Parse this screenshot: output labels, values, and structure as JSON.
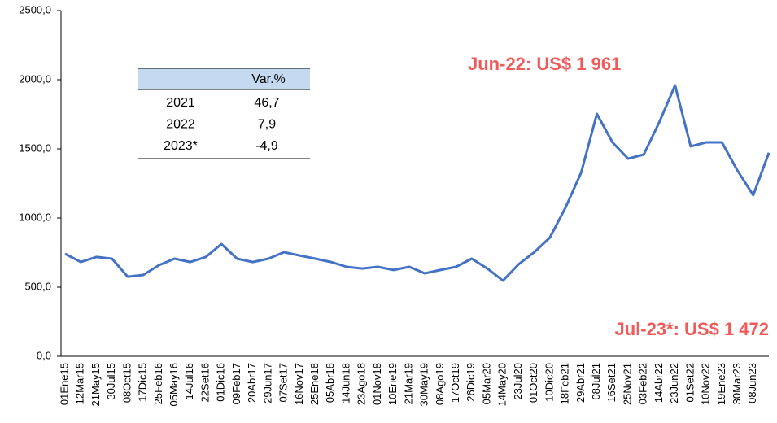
{
  "chart_data": {
    "type": "line",
    "categories": [
      "01Ene15",
      "12Mar15",
      "21May15",
      "30Jul15",
      "08Oct15",
      "17Dic15",
      "25Feb16",
      "05May16",
      "14Jul16",
      "22Set16",
      "01Dic16",
      "09Feb17",
      "20Abr17",
      "29Jun17",
      "07Set17",
      "16Nov17",
      "25Ene18",
      "05Abr18",
      "14Jun18",
      "23Ago18",
      "01Nov18",
      "10Ene19",
      "21Mar19",
      "30May19",
      "08Ago19",
      "17Oct19",
      "26Dic19",
      "05Mar20",
      "14May20",
      "23Jul20",
      "01Oct20",
      "10Dic20",
      "18Feb21",
      "29Abr21",
      "08Jul21",
      "16Set21",
      "25Nov21",
      "03Feb22",
      "14Abr22",
      "23Jun22",
      "01Set22",
      "10Nov22",
      "19Ene23",
      "30Mar23",
      "08Jun23",
      null
    ],
    "series": [
      {
        "color": "#4472c4",
        "values": [
          741,
          682,
          718,
          706,
          576,
          588,
          659,
          706,
          682,
          718,
          812,
          706,
          682,
          706,
          753,
          729,
          706,
          682,
          647,
          635,
          647,
          624,
          647,
          600,
          624,
          647,
          706,
          635,
          547,
          665,
          753,
          859,
          1076,
          1329,
          1753,
          1547,
          1429,
          1459,
          1694,
          1959,
          1518,
          1547,
          1547,
          1341,
          1165,
          1472
        ]
      }
    ],
    "ylim": [
      0,
      2500
    ],
    "yticks": [
      {
        "value": 0,
        "label": "0,0"
      },
      {
        "value": 500,
        "label": "500,0"
      },
      {
        "value": 1000,
        "label": "1000,0"
      },
      {
        "value": 1500,
        "label": "1500,0"
      },
      {
        "value": 2000,
        "label": "2000,0"
      },
      {
        "value": 2500,
        "label": "2500,0"
      }
    ],
    "annotations": [
      "Jun-22: US$ 1 961",
      "Jul-23*: US$ 1 472"
    ],
    "table": {
      "header": "Var.%",
      "rows": [
        [
          "2021",
          "46,7"
        ],
        [
          "2022",
          "7,9"
        ],
        [
          "2023*",
          "-4,9"
        ]
      ]
    }
  }
}
